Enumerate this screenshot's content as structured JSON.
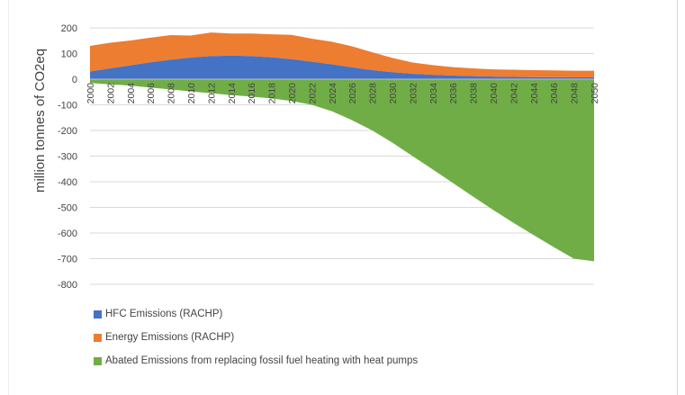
{
  "chart_data": {
    "type": "area",
    "title": "",
    "xlabel": "",
    "ylabel": "million tonnes of CO2eq",
    "ylim": [
      -800,
      200
    ],
    "yticks": [
      200,
      100,
      0,
      -100,
      -200,
      -300,
      -400,
      -500,
      -600,
      -700,
      -800
    ],
    "xlim": [
      2000,
      2050
    ],
    "xticks": [
      "2000",
      "2002",
      "2004",
      "2006",
      "2008",
      "2010",
      "2012",
      "2014",
      "2016",
      "2018",
      "2020",
      "2022",
      "2024",
      "2026",
      "2028",
      "2030",
      "2032",
      "2034",
      "2036",
      "2038",
      "2040",
      "2042",
      "2044",
      "2046",
      "2048",
      "2050"
    ],
    "x": [
      2000,
      2002,
      2004,
      2006,
      2008,
      2010,
      2012,
      2014,
      2016,
      2018,
      2020,
      2022,
      2024,
      2026,
      2028,
      2030,
      2032,
      2034,
      2036,
      2038,
      2040,
      2042,
      2044,
      2046,
      2048,
      2050
    ],
    "grid": true,
    "legend_position": "bottom",
    "series": [
      {
        "name": "HFC Emissions (RACHP)",
        "color": "#4472C4",
        "stacked": "positive",
        "values": [
          30,
          42,
          54,
          66,
          76,
          84,
          90,
          92,
          90,
          85,
          78,
          68,
          58,
          46,
          35,
          27,
          21,
          17,
          14,
          12,
          10,
          9,
          8,
          8,
          7,
          7
        ]
      },
      {
        "name": "Energy Emissions (RACHP)",
        "color": "#ED7D31",
        "stacked": "positive",
        "values": [
          100,
          100,
          97,
          96,
          96,
          86,
          92,
          86,
          88,
          90,
          95,
          90,
          88,
          82,
          70,
          56,
          44,
          38,
          33,
          30,
          28,
          28,
          27,
          26,
          26,
          26
        ]
      },
      {
        "name": "Abated Emissions from replacing fossil fuel heating with heat pumps",
        "color": "#70AD47",
        "stacked": "negative",
        "values": [
          -15,
          -20,
          -25,
          -33,
          -40,
          -48,
          -55,
          -62,
          -68,
          -75,
          -85,
          -100,
          -125,
          -160,
          -200,
          -248,
          -300,
          -352,
          -405,
          -458,
          -510,
          -560,
          -608,
          -655,
          -700,
          -710
        ]
      }
    ]
  }
}
